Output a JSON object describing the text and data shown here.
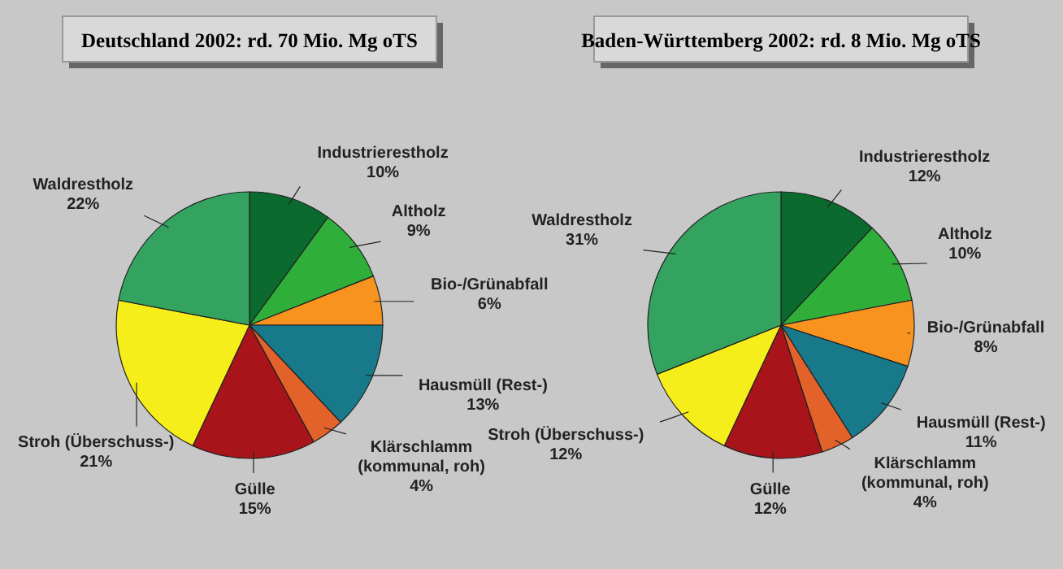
{
  "chart_data": [
    {
      "type": "pie",
      "title": "Deutschland 2002: rd. 70 Mio. Mg oTS",
      "categories": [
        "Industrierestholz",
        "Altholz",
        "Bio-/Grünabfall",
        "Hausmüll (Rest-)",
        "Klärschlamm (kommunal, roh)",
        "Gülle",
        "Stroh (Überschuss-)",
        "Waldrestholz"
      ],
      "values": [
        10,
        9,
        6,
        13,
        4,
        15,
        21,
        22
      ],
      "value_labels": [
        "10%",
        "9%",
        "6%",
        "13%",
        "4%",
        "15%",
        "21%",
        "22%"
      ],
      "colors": [
        "#0b6b2e",
        "#2fae3a",
        "#f7931e",
        "#17798a",
        "#e2622a",
        "#a8141a",
        "#f6ee1a",
        "#33a35f"
      ]
    },
    {
      "type": "pie",
      "title": "Baden-Württemberg 2002: rd. 8 Mio. Mg oTS",
      "categories": [
        "Industrierestholz",
        "Altholz",
        "Bio-/Grünabfall",
        "Hausmüll (Rest-)",
        "Klärschlamm (kommunal, roh)",
        "Gülle",
        "Stroh (Überschuss-)",
        "Waldrestholz"
      ],
      "values": [
        12,
        10,
        8,
        11,
        4,
        12,
        12,
        31
      ],
      "value_labels": [
        "12%",
        "10%",
        "8%",
        "11%",
        "4%",
        "12%",
        "12%",
        "31%"
      ],
      "colors": [
        "#0b6b2e",
        "#2fae3a",
        "#f7931e",
        "#17798a",
        "#e2622a",
        "#a8141a",
        "#f6ee1a",
        "#33a35f"
      ]
    }
  ]
}
